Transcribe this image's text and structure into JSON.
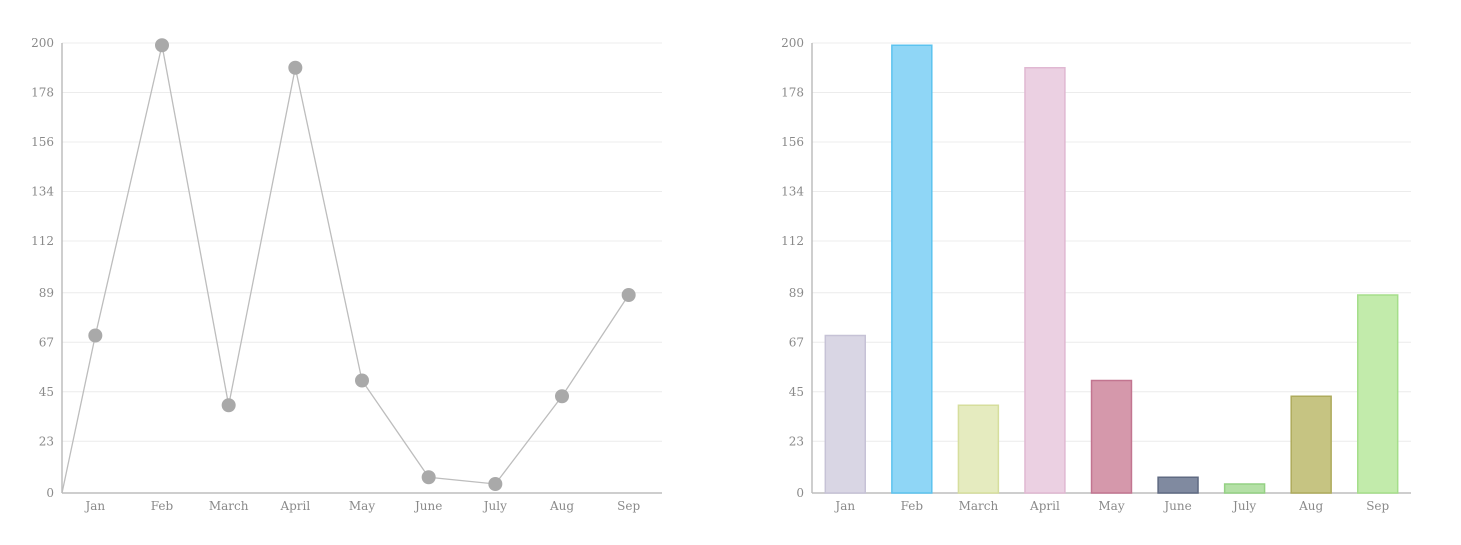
{
  "chart_data": [
    {
      "type": "line",
      "categories": [
        "Jan",
        "Feb",
        "March",
        "April",
        "May",
        "June",
        "July",
        "Aug",
        "Sep"
      ],
      "values": [
        70,
        199,
        39,
        189,
        50,
        7,
        4,
        43,
        88
      ],
      "title": "",
      "xlabel": "",
      "ylabel": "",
      "yticks": [
        0,
        23,
        45,
        67,
        89,
        112,
        134,
        156,
        178,
        200
      ],
      "ylim": [
        0,
        200
      ],
      "grid": true,
      "colors": {
        "line": "#bdbdbd",
        "point": "#a9a9a9"
      }
    },
    {
      "type": "bar",
      "categories": [
        "Jan",
        "Feb",
        "March",
        "April",
        "May",
        "June",
        "July",
        "Aug",
        "Sep"
      ],
      "values": [
        70,
        199,
        39,
        189,
        50,
        7,
        4,
        43,
        88
      ],
      "title": "",
      "xlabel": "",
      "ylabel": "",
      "yticks": [
        0,
        23,
        45,
        67,
        89,
        112,
        134,
        156,
        178,
        200
      ],
      "ylim": [
        0,
        200
      ],
      "grid": true,
      "colors": {
        "fills": [
          "#d9d6e4",
          "#8fd6f6",
          "#e5ebbf",
          "#ebd0e2",
          "#d598ab",
          "#808aa0",
          "#b4e0a6",
          "#c6c482",
          "#c2ebab"
        ],
        "strokes": [
          "#c6c2d6",
          "#5cc3ef",
          "#d6de9c",
          "#e0b8d2",
          "#c27590",
          "#5f6a82",
          "#94d183",
          "#aeab5c",
          "#a5de8a"
        ]
      }
    }
  ]
}
